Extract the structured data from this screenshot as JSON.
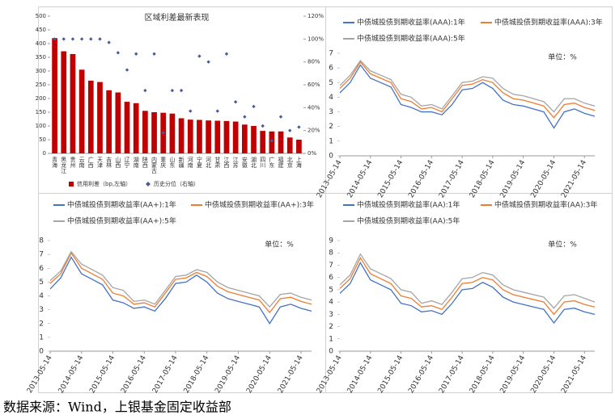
{
  "chart_data": [
    {
      "type": "bar",
      "title": "区域利差最新表现",
      "categories": [
        "青海",
        "黑龙江",
        "贵州",
        "云南",
        "广西",
        "天津",
        "吉林",
        "山西",
        "辽宁",
        "湖南",
        "陕西",
        "内蒙古",
        "重庆",
        "山东",
        "新疆",
        "河南",
        "宁夏",
        "河北",
        "甘肃",
        "江西",
        "江苏",
        "安徽",
        "湖北",
        "四川",
        "广东",
        "福建",
        "北京",
        "上海"
      ],
      "series": [
        {
          "name": "信用利差（bp,左轴）",
          "color": "#c00000",
          "values": [
            420,
            372,
            362,
            305,
            265,
            260,
            230,
            222,
            188,
            183,
            155,
            150,
            148,
            145,
            128,
            123,
            122,
            120,
            119,
            118,
            116,
            105,
            100,
            82,
            80,
            80,
            58,
            50
          ]
        },
        {
          "name": "历史分位（右轴）",
          "color": "#4a5a9a",
          "axis": "y2",
          "type": "scatter",
          "values": [
            100,
            100,
            100,
            100,
            100,
            100,
            97,
            88,
            73,
            87,
            55,
            87,
            18,
            55,
            55,
            37,
            85,
            80,
            37,
            87,
            45,
            32,
            41,
            24,
            11,
            32,
            20,
            23
          ]
        }
      ],
      "ylim": [
        0,
        500
      ],
      "yticks": [
        0,
        50,
        100,
        150,
        200,
        250,
        300,
        350,
        400,
        450,
        500
      ],
      "y2lim": [
        0,
        120
      ],
      "y2ticks": [
        {
          "value": 0,
          "label": "0%"
        },
        {
          "value": 20,
          "label": "20%"
        },
        {
          "value": 40,
          "label": "40%"
        },
        {
          "value": 60,
          "label": "60%"
        },
        {
          "value": 80,
          "label": "80%"
        },
        {
          "value": 100,
          "label": "100%"
        },
        {
          "value": 120,
          "label": "120%"
        }
      ]
    },
    {
      "type": "line",
      "annotation": "单位：%",
      "x": [
        "2013-05-14",
        "2013-09-14",
        "2014-01-14",
        "2014-05-14",
        "2014-09-14",
        "2015-01-14",
        "2015-05-14",
        "2015-09-14",
        "2016-01-14",
        "2016-05-14",
        "2016-09-14",
        "2017-01-14",
        "2017-05-14",
        "2017-09-14",
        "2018-01-14",
        "2018-05-14",
        "2018-09-14",
        "2019-01-14",
        "2019-05-14",
        "2019-09-14",
        "2020-01-14",
        "2020-05-14",
        "2020-09-14",
        "2021-01-14",
        "2021-05-14",
        "2021-09-14"
      ],
      "series": [
        {
          "name": "中债城投债到期收益率(AAA):1年",
          "color": "#4472c4",
          "values": [
            4.3,
            5.0,
            6.2,
            5.3,
            5.0,
            4.7,
            3.5,
            3.3,
            3.0,
            3.0,
            2.8,
            3.5,
            4.5,
            4.6,
            5.0,
            4.6,
            3.8,
            3.5,
            3.4,
            3.2,
            3.0,
            1.9,
            3.0,
            3.2,
            2.9,
            2.7
          ]
        },
        {
          "name": "中债城投债到期收益率(AAA):3年",
          "color": "#ed7d31",
          "values": [
            4.6,
            5.3,
            6.4,
            5.6,
            5.3,
            5.0,
            3.9,
            3.7,
            3.2,
            3.3,
            3.0,
            3.9,
            4.8,
            4.9,
            5.2,
            5.0,
            4.3,
            3.9,
            3.8,
            3.6,
            3.4,
            2.6,
            3.5,
            3.6,
            3.3,
            3.1
          ]
        },
        {
          "name": "中债城投债到期收益率(AAA):5年",
          "color": "#a5a5a5",
          "values": [
            4.8,
            5.5,
            6.5,
            5.8,
            5.5,
            5.2,
            4.2,
            4.0,
            3.4,
            3.5,
            3.2,
            4.1,
            5.0,
            5.1,
            5.4,
            5.3,
            4.6,
            4.2,
            4.1,
            3.9,
            3.7,
            3.0,
            3.9,
            3.9,
            3.6,
            3.4
          ]
        }
      ],
      "xlim": [
        "2013-05-14",
        "2021-09-14"
      ],
      "xticks": [
        "2013-05-14",
        "2014-05-14",
        "2015-05-14",
        "2016-05-14",
        "2017-05-14",
        "2018-05-14",
        "2019-05-14",
        "2020-05-14",
        "2021-05-14"
      ],
      "ylim": [
        0,
        7
      ],
      "yticks": [
        0,
        1,
        2,
        3,
        4,
        5,
        6,
        7
      ]
    },
    {
      "type": "line",
      "annotation": "单位：%",
      "x": [
        "2013-05-14",
        "2013-09-14",
        "2014-01-14",
        "2014-05-14",
        "2014-09-14",
        "2015-01-14",
        "2015-05-14",
        "2015-09-14",
        "2016-01-14",
        "2016-05-14",
        "2016-09-14",
        "2017-01-14",
        "2017-05-14",
        "2017-09-14",
        "2018-01-14",
        "2018-05-14",
        "2018-09-14",
        "2019-01-14",
        "2019-05-14",
        "2019-09-14",
        "2020-01-14",
        "2020-05-14",
        "2020-09-14",
        "2021-01-14",
        "2021-05-14",
        "2021-09-14"
      ],
      "series": [
        {
          "name": "中债城投债到期收益率(AA+):1年",
          "color": "#4472c4",
          "values": [
            4.5,
            5.3,
            6.8,
            5.6,
            5.2,
            4.8,
            3.7,
            3.5,
            3.1,
            3.2,
            2.9,
            3.8,
            4.9,
            5.0,
            5.5,
            5.0,
            4.2,
            3.8,
            3.6,
            3.4,
            3.2,
            2.0,
            3.2,
            3.4,
            3.1,
            2.9
          ]
        },
        {
          "name": "中债城投债到期收益率(AA+):3年",
          "color": "#ed7d31",
          "values": [
            4.9,
            5.6,
            7.1,
            6.0,
            5.6,
            5.2,
            4.2,
            4.0,
            3.4,
            3.5,
            3.2,
            4.2,
            5.2,
            5.3,
            5.7,
            5.4,
            4.7,
            4.3,
            4.1,
            3.9,
            3.7,
            2.8,
            3.8,
            3.9,
            3.6,
            3.4
          ]
        },
        {
          "name": "中债城投债到期收益率(AA+):5年",
          "color": "#a5a5a5",
          "values": [
            5.1,
            5.8,
            7.2,
            6.3,
            5.9,
            5.5,
            4.6,
            4.4,
            3.6,
            3.7,
            3.4,
            4.4,
            5.4,
            5.5,
            5.9,
            5.7,
            5.0,
            4.6,
            4.4,
            4.2,
            4.0,
            3.2,
            4.1,
            4.2,
            3.9,
            3.7
          ]
        }
      ],
      "xlim": [
        "2013-05-14",
        "2021-09-14"
      ],
      "xticks": [
        "2013-05-14",
        "2014-05-14",
        "2015-05-14",
        "2016-05-14",
        "2017-05-14",
        "2018-05-14",
        "2019-05-14",
        "2020-05-14",
        "2021-05-14"
      ],
      "ylim": [
        0,
        8
      ],
      "yticks": [
        0,
        1,
        2,
        3,
        4,
        5,
        6,
        7,
        8
      ]
    },
    {
      "type": "line",
      "annotation": "单位：%",
      "x": [
        "2013-05-14",
        "2013-09-14",
        "2014-01-14",
        "2014-05-14",
        "2014-09-14",
        "2015-01-14",
        "2015-05-14",
        "2015-09-14",
        "2016-01-14",
        "2016-05-14",
        "2016-09-14",
        "2017-01-14",
        "2017-05-14",
        "2017-09-14",
        "2018-01-14",
        "2018-05-14",
        "2018-09-14",
        "2019-01-14",
        "2019-05-14",
        "2019-09-14",
        "2020-01-14",
        "2020-05-14",
        "2020-09-14",
        "2021-01-14",
        "2021-05-14",
        "2021-09-14"
      ],
      "series": [
        {
          "name": "中债城投债到期收益率(AA):1年",
          "color": "#4472c4",
          "values": [
            4.7,
            5.5,
            7.2,
            5.8,
            5.4,
            5.0,
            3.9,
            3.7,
            3.2,
            3.3,
            3.0,
            3.9,
            5.0,
            5.1,
            5.6,
            5.2,
            4.4,
            4.0,
            3.8,
            3.6,
            3.4,
            2.3,
            3.4,
            3.5,
            3.2,
            3.0
          ]
        },
        {
          "name": "中债城投债到期收益率(AA):3年",
          "color": "#ed7d31",
          "values": [
            5.1,
            5.9,
            7.6,
            6.3,
            5.9,
            5.5,
            4.5,
            4.3,
            3.6,
            3.7,
            3.4,
            4.4,
            5.5,
            5.6,
            6.0,
            5.8,
            5.0,
            4.6,
            4.4,
            4.2,
            4.0,
            3.0,
            4.0,
            4.1,
            3.8,
            3.6
          ]
        },
        {
          "name": "中债城投债到期收益率(AA):5年",
          "color": "#a5a5a5",
          "values": [
            5.4,
            6.2,
            7.9,
            6.7,
            6.3,
            5.9,
            5.0,
            4.8,
            3.9,
            4.1,
            3.8,
            4.8,
            5.9,
            6.0,
            6.4,
            6.2,
            5.4,
            5.0,
            4.8,
            4.6,
            4.4,
            3.5,
            4.5,
            4.6,
            4.3,
            4.0
          ]
        }
      ],
      "xlim": [
        "2013-05-14",
        "2021-09-14"
      ],
      "xticks": [
        "2013-05-14",
        "2014-05-14",
        "2015-05-14",
        "2016-05-14",
        "2017-05-14",
        "2018-05-14",
        "2019-05-14",
        "2020-05-14",
        "2021-05-14"
      ],
      "ylim": [
        0,
        9
      ],
      "yticks": [
        0,
        1,
        2,
        3,
        4,
        5,
        6,
        7,
        8,
        9
      ]
    }
  ],
  "source": "数据来源：Wind，上银基金固定收益部"
}
